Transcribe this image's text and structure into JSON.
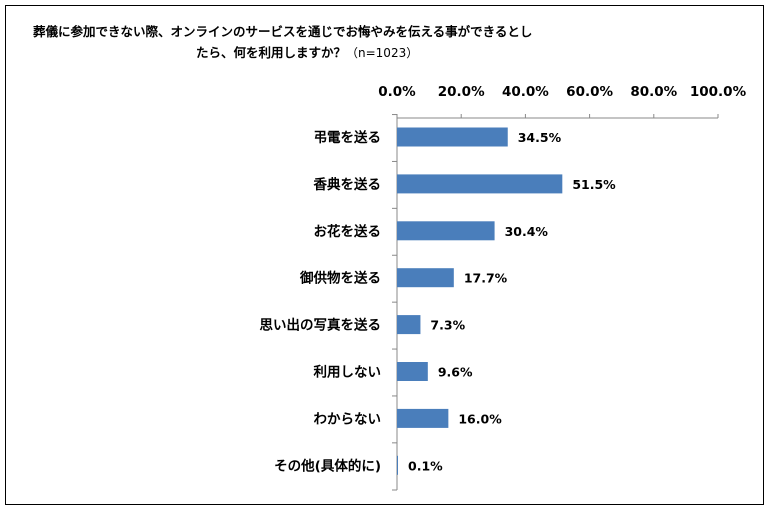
{
  "chart_data": {
    "type": "bar",
    "orientation": "horizontal",
    "title_line1": "葬儀に参加できない際、オンラインのサービスを通じでお悔やみを伝える事ができるとし",
    "title_line2": "たら、何を利用しますか？",
    "title_note": "（n=1023）",
    "categories": [
      "弔電を送る",
      "香典を送る",
      "お花を送る",
      "御供物を送る",
      "思い出の写真を送る",
      "利用しない",
      "わからない",
      "その他(具体的に)"
    ],
    "values": [
      34.5,
      51.5,
      30.4,
      17.7,
      7.3,
      9.6,
      16.0,
      0.1
    ],
    "value_labels": [
      "34.5%",
      "51.5%",
      "30.4%",
      "17.7%",
      "7.3%",
      "9.6%",
      "16.0%",
      "0.1%"
    ],
    "x_ticks": [
      0,
      20,
      40,
      60,
      80,
      100
    ],
    "x_tick_labels": [
      "0.0%",
      "20.0%",
      "40.0%",
      "60.0%",
      "80.0%",
      "100.0%"
    ],
    "xlim": [
      0,
      100
    ],
    "x_axis_position": "top",
    "grid": false,
    "legend": "none",
    "bar_color": "#4a7ebb"
  }
}
